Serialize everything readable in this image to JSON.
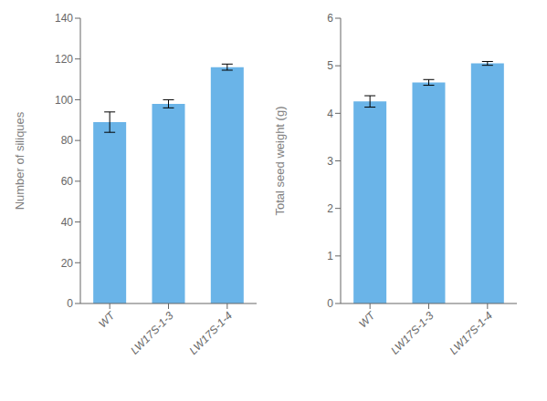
{
  "chart_data": [
    {
      "type": "bar",
      "categories": [
        "WT",
        "LW17S-1-3",
        "LW17S-1-4"
      ],
      "values": [
        89,
        98,
        116
      ],
      "errors": [
        5,
        2,
        1.5
      ],
      "ylabel": "Number of siliques",
      "ylim": [
        0,
        140
      ],
      "yticks": [
        0,
        20,
        40,
        60,
        80,
        100,
        120,
        140
      ],
      "color": "#6ab4e8",
      "grid": false
    },
    {
      "type": "bar",
      "categories": [
        "WT",
        "LW17S-1-3",
        "LW17S-1-4"
      ],
      "values": [
        4.25,
        4.65,
        5.05
      ],
      "errors": [
        0.12,
        0.06,
        0.04
      ],
      "ylabel": "Total seed weight (g)",
      "ylim": [
        0,
        6
      ],
      "yticks": [
        0,
        1,
        2,
        3,
        4,
        5,
        6
      ],
      "color": "#6ab4e8",
      "grid": false
    }
  ]
}
